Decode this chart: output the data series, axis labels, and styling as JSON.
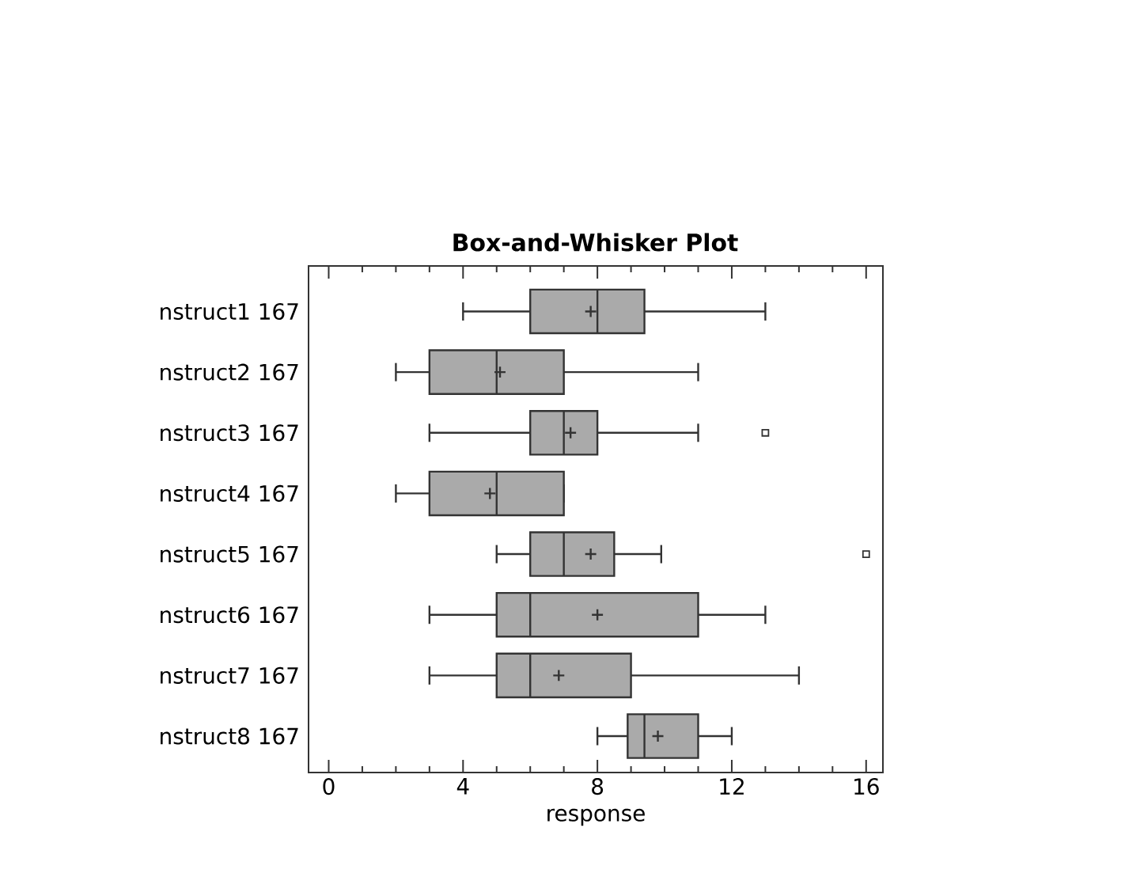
{
  "chart_data": {
    "type": "box",
    "title": "Box-and-Whisker Plot",
    "xlabel": "response",
    "orientation": "horizontal",
    "categories": [
      "nstruct1 167",
      "nstruct2 167",
      "nstruct3 167",
      "nstruct4 167",
      "nstruct5 167",
      "nstruct6 167",
      "nstruct7 167",
      "nstruct8 167"
    ],
    "boxes": [
      {
        "low": 4,
        "q1": 6,
        "median": 8,
        "q3": 9.4,
        "high": 13,
        "mean": 7.8
      },
      {
        "low": 2,
        "q1": 3,
        "median": 5,
        "q3": 7,
        "high": 11,
        "mean": 5.1
      },
      {
        "low": 3,
        "q1": 6,
        "median": 7,
        "q3": 8,
        "high": 11,
        "mean": 7.2,
        "outliers": [
          13
        ]
      },
      {
        "low": 2,
        "q1": 3,
        "median": 5,
        "q3": 7,
        "high": 7,
        "mean": 4.8
      },
      {
        "low": 5,
        "q1": 6,
        "median": 7,
        "q3": 8.5,
        "high": 9.9,
        "mean": 7.8,
        "outliers": [
          16
        ]
      },
      {
        "low": 3,
        "q1": 5,
        "median": 6,
        "q3": 11,
        "high": 13,
        "mean": 8
      },
      {
        "low": 3,
        "q1": 5,
        "median": 6,
        "q3": 9,
        "high": 14,
        "mean": 6.85
      },
      {
        "low": 8,
        "q1": 8.9,
        "median": 9.4,
        "q3": 11,
        "high": 12,
        "mean": 9.8
      }
    ],
    "color": "#aaaaaa",
    "xlim": [
      -0.6,
      16.5
    ],
    "xticks": [
      0,
      4,
      8,
      12,
      16
    ]
  }
}
